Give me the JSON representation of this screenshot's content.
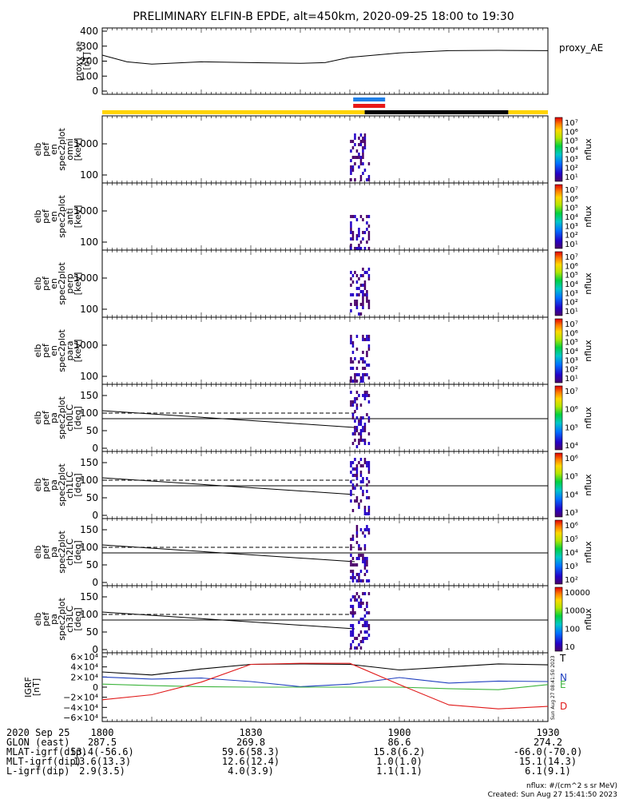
{
  "title": "PRELIMINARY ELFIN-B EPDE, alt=450km, 2020-09-25 18:00 to 19:30",
  "proxy_panel": {
    "ylabel_lines": [
      "proxy_ae",
      "[nT]"
    ],
    "yticks": [
      "400",
      "300",
      "200",
      "100",
      "0"
    ],
    "series_name": "proxy_AE"
  },
  "energy_panels": [
    {
      "ylabel_lines": [
        "elb",
        "pef",
        "en",
        "spec2plot",
        "omni",
        "[keV]"
      ],
      "yticks": [
        "1000",
        "100"
      ],
      "cbar_ticks": [
        "10⁷",
        "10⁶",
        "10⁵",
        "10⁴",
        "10³",
        "10²",
        "10¹"
      ],
      "cbar_label": "nflux"
    },
    {
      "ylabel_lines": [
        "elb",
        "pef",
        "en",
        "spec2plot",
        "anti",
        "[keV]"
      ],
      "yticks": [
        "1000",
        "100"
      ],
      "cbar_ticks": [
        "10⁷",
        "10⁶",
        "10⁵",
        "10⁴",
        "10³",
        "10²",
        "10¹"
      ],
      "cbar_label": "nflux"
    },
    {
      "ylabel_lines": [
        "elb",
        "pef",
        "en",
        "spec2plot",
        "perp",
        "[keV]"
      ],
      "yticks": [
        "1000",
        "100"
      ],
      "cbar_ticks": [
        "10⁷",
        "10⁶",
        "10⁵",
        "10⁴",
        "10³",
        "10²",
        "10¹"
      ],
      "cbar_label": "nflux"
    },
    {
      "ylabel_lines": [
        "elb",
        "pef",
        "en",
        "spec2plot",
        "para",
        "[keV]"
      ],
      "yticks": [
        "1000",
        "100"
      ],
      "cbar_ticks": [
        "10⁷",
        "10⁶",
        "10⁵",
        "10⁴",
        "10³",
        "10²",
        "10¹"
      ],
      "cbar_label": "nflux"
    }
  ],
  "pa_panels": [
    {
      "ylabel_lines": [
        "elb",
        "pef",
        "pa",
        "spec2plot",
        "ch0LC",
        "[deg]"
      ],
      "yticks": [
        "150",
        "100",
        "50",
        "0"
      ],
      "cbar_ticks": [
        "10⁷",
        "10⁶",
        "10⁵",
        "10⁴"
      ],
      "cbar_label": "nflux"
    },
    {
      "ylabel_lines": [
        "elb",
        "pef",
        "pa",
        "spec2plot",
        "ch1LC",
        "[deg]"
      ],
      "yticks": [
        "150",
        "100",
        "50",
        "0"
      ],
      "cbar_ticks": [
        "10⁶",
        "10⁵",
        "10⁴",
        "10³"
      ],
      "cbar_label": "nflux"
    },
    {
      "ylabel_lines": [
        "elb",
        "pef",
        "pa",
        "spec2plot",
        "ch2LC",
        "[deg]"
      ],
      "yticks": [
        "150",
        "100",
        "50",
        "0"
      ],
      "cbar_ticks": [
        "10⁶",
        "10⁵",
        "10⁴",
        "10³",
        "10²"
      ],
      "cbar_label": "nflux"
    },
    {
      "ylabel_lines": [
        "elb",
        "pef",
        "pa",
        "spec2plot",
        "ch3LC",
        "[deg]"
      ],
      "yticks": [
        "150",
        "100",
        "50",
        "0"
      ],
      "cbar_ticks": [
        "10000",
        "1000",
        "100",
        "10"
      ],
      "cbar_label": "nflux"
    }
  ],
  "igrf_panel": {
    "ylabel_lines": [
      "IGRF",
      "[nT]"
    ],
    "yticks": [
      "6×10⁴",
      "4×10⁴",
      "2×10⁴",
      "0",
      "−2×10⁴",
      "−4×10⁴",
      "−6×10⁴"
    ],
    "labels": [
      {
        "text": "T",
        "color": "#000000"
      },
      {
        "text": "N",
        "color": "#1f3fbf"
      },
      {
        "text": "E",
        "color": "#3cb43c"
      },
      {
        "text": "D",
        "color": "#e01818"
      }
    ],
    "stamp": "Sun Aug 27 08:41:50 2023"
  },
  "time_axis": {
    "row_labels": [
      "2020 Sep 25",
      "GLON (east)",
      "MLAT-igrf(dip)",
      "MLT-igrf(dip)",
      "L-igrf(dip)"
    ],
    "columns": [
      {
        "values": [
          "1800",
          "287.5",
          "53.4(-56.6)",
          "13.6(13.3)",
          "2.9(3.5)"
        ]
      },
      {
        "values": [
          "1830",
          "269.8",
          "59.6(58.3)",
          "12.6(12.4)",
          "4.0(3.9)"
        ]
      },
      {
        "values": [
          "1900",
          "86.6",
          "15.8(6.2)",
          "1.0(1.0)",
          "1.1(1.1)"
        ]
      },
      {
        "values": [
          "1930",
          "274.2",
          "-66.0(-70.0)",
          "15.1(14.3)",
          "6.1(9.1)"
        ]
      }
    ]
  },
  "footer": {
    "units": "nflux: #/(cm^2 s sr MeV)",
    "created": "Created: Sun Aug 27 15:41:50 2023"
  },
  "colors": {
    "sunlit_bar": "#ffd400",
    "shadow_bar": "#000000",
    "blue_bar": "#1e7fe8",
    "red_bar": "#e81818",
    "igrf_T": "#000000",
    "igrf_N": "#1f3fbf",
    "igrf_E": "#3cb43c",
    "igrf_D": "#e01818"
  },
  "chart_data": {
    "type": "line",
    "title": "PRELIMINARY ELFIN-B EPDE, alt=450km, 2020-09-25 18:00 to 19:30",
    "x_unit": "UT (HHMM)",
    "x_range": [
      "1800",
      "1930"
    ],
    "proxy_ae": {
      "ylim": [
        0,
        400
      ],
      "x": [
        "1800",
        "1805",
        "1810",
        "1820",
        "1830",
        "1840",
        "1845",
        "1850",
        "1900",
        "1910",
        "1920",
        "1930"
      ],
      "values": [
        240,
        195,
        180,
        195,
        190,
        185,
        190,
        225,
        255,
        270,
        272,
        270
      ]
    },
    "science_zone": {
      "start": "1851",
      "end": "1853"
    },
    "sunlit_bar": [
      {
        "state": "sunlit",
        "start": "1800",
        "end": "1853"
      },
      {
        "state": "shadow",
        "start": "1853",
        "end": "1922"
      },
      {
        "state": "sunlit",
        "start": "1922",
        "end": "1930"
      }
    ],
    "igrf": {
      "ylim": [
        -60000,
        60000
      ],
      "x": [
        "1800",
        "1810",
        "1820",
        "1830",
        "1840",
        "1850",
        "1900",
        "1910",
        "1920",
        "1930"
      ],
      "series": [
        {
          "name": "T",
          "values": [
            30000,
            24000,
            36000,
            45000,
            46000,
            45000,
            34000,
            40000,
            46000,
            44000
          ]
        },
        {
          "name": "N",
          "values": [
            20000,
            16000,
            18000,
            11000,
            1000,
            6000,
            19000,
            8000,
            12000,
            11000
          ]
        },
        {
          "name": "E",
          "values": [
            6000,
            3000,
            1000,
            0,
            0,
            0,
            0,
            -3000,
            -5000,
            5000
          ]
        },
        {
          "name": "D",
          "values": [
            -25000,
            -15000,
            10000,
            45000,
            47000,
            47000,
            5000,
            -35000,
            -43000,
            -38000
          ]
        }
      ]
    }
  }
}
